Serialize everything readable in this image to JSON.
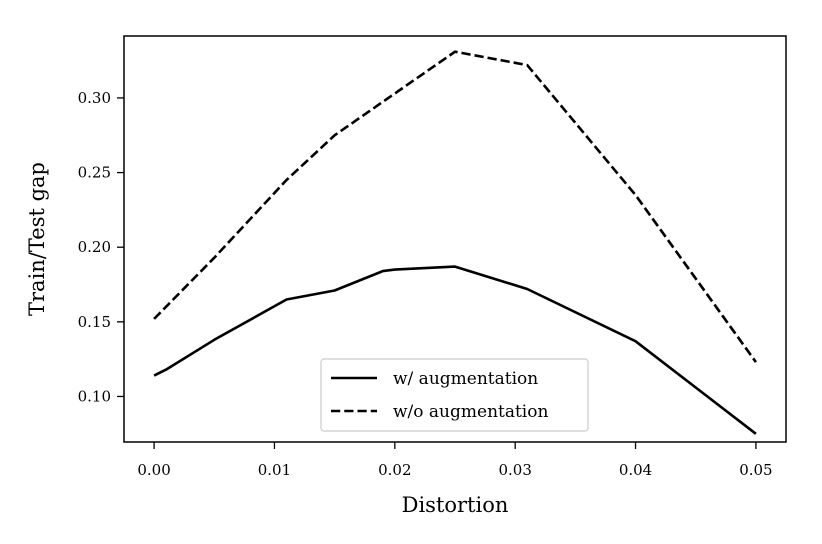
{
  "chart_data": {
    "type": "line",
    "xlabel": "Distortion",
    "ylabel": "Train/Test gap",
    "xlim": [
      -0.0025,
      0.0525
    ],
    "ylim": [
      0.0695,
      0.3415
    ],
    "xticks": [
      0.0,
      0.01,
      0.02,
      0.03,
      0.04,
      0.05
    ],
    "xtick_labels": [
      "0.00",
      "0.01",
      "0.02",
      "0.03",
      "0.04",
      "0.05"
    ],
    "yticks": [
      0.1,
      0.15,
      0.2,
      0.25,
      0.3
    ],
    "ytick_labels": [
      "0.10",
      "0.15",
      "0.20",
      "0.25",
      "0.30"
    ],
    "grid": false,
    "legend_position": "lower-center",
    "series": [
      {
        "name": "w/ augmentation",
        "style": "solid",
        "color": "#000000",
        "x": [
          0.0,
          0.001,
          0.005,
          0.011,
          0.015,
          0.019,
          0.02,
          0.025,
          0.031,
          0.04,
          0.045,
          0.05
        ],
        "y": [
          0.114,
          0.118,
          0.138,
          0.165,
          0.171,
          0.184,
          0.185,
          0.187,
          0.172,
          0.137,
          0.106,
          0.075
        ]
      },
      {
        "name": "w/o augmentation",
        "style": "dashed",
        "color": "#000000",
        "x": [
          0.0,
          0.005,
          0.011,
          0.015,
          0.02,
          0.025,
          0.031,
          0.04,
          0.05
        ],
        "y": [
          0.152,
          0.193,
          0.245,
          0.275,
          0.303,
          0.331,
          0.322,
          0.235,
          0.123
        ]
      }
    ]
  }
}
